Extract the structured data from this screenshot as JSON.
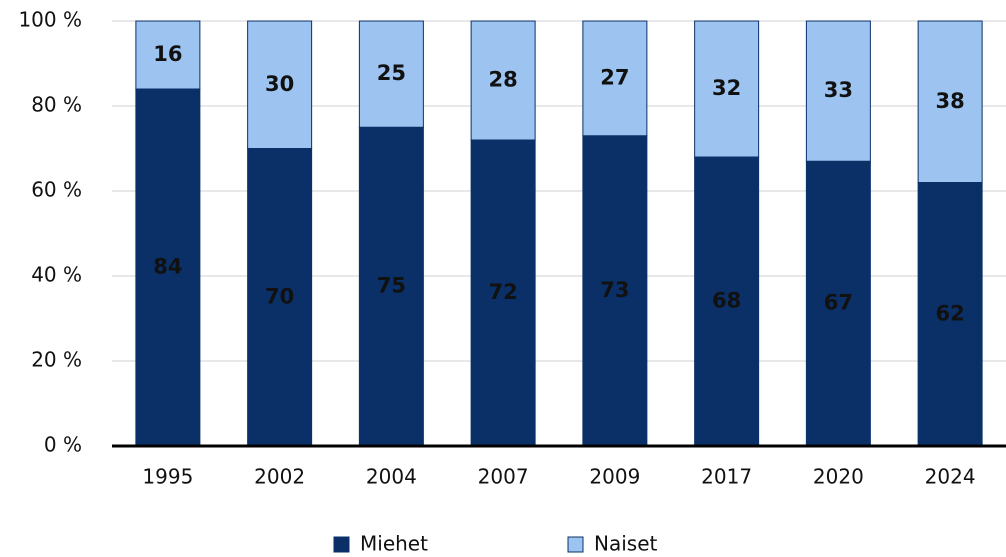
{
  "chart_data": {
    "type": "stacked_bar",
    "categories": [
      "1995",
      "2002",
      "2004",
      "2007",
      "2009",
      "2017",
      "2020",
      "2024"
    ],
    "series": [
      {
        "name": "Miehet",
        "color": "#0b3068",
        "values": [
          84,
          70,
          75,
          72,
          73,
          68,
          67,
          62
        ]
      },
      {
        "name": "Naiset",
        "color": "#9dc3f0",
        "values": [
          16,
          30,
          25,
          28,
          27,
          32,
          33,
          38
        ]
      }
    ],
    "ylim": [
      0,
      100
    ],
    "yticks": [
      {
        "value": 0,
        "label": "0 %"
      },
      {
        "value": 20,
        "label": "20 %"
      },
      {
        "value": 40,
        "label": "40 %"
      },
      {
        "value": 60,
        "label": "60 %"
      },
      {
        "value": 80,
        "label": "80 %"
      },
      {
        "value": 100,
        "label": "100 %"
      }
    ],
    "grid": true,
    "legend": "bottom"
  }
}
